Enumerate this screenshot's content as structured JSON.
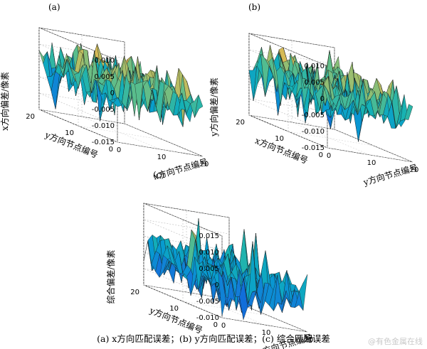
{
  "caption": "(a) x方向匹配误差；(b) y方向匹配误差；(c) 综合匹配误差",
  "watermark": "@有色金属在线",
  "chart_data": [
    {
      "type": "surface",
      "panel": "(a)",
      "zlabel": "x方向偏差/像素",
      "ylabel": "y方向节点编号",
      "xlabel": "x方向节点编号",
      "zlim": [
        -0.015,
        0.01
      ],
      "zticks": [
        "0.010",
        "0.005",
        "0",
        "-0.005",
        "-0.010",
        "-0.015"
      ],
      "xticks": [
        "0",
        "10",
        "20"
      ],
      "yticks": [
        "20",
        "10",
        "0"
      ],
      "xrange": [
        0,
        20
      ],
      "yrange": [
        0,
        20
      ],
      "grid": true,
      "seed": 11
    },
    {
      "type": "surface",
      "panel": "(b)",
      "zlabel": "y方向偏差/像素",
      "ylabel": "x方向节点编号",
      "xlabel": "y方向节点编号",
      "zlim": [
        -0.015,
        0.01
      ],
      "zticks": [
        "0.010",
        "0.005",
        "0",
        "-0.005",
        "-0.010",
        "-0.015"
      ],
      "xticks": [
        "0",
        "10",
        "20"
      ],
      "yticks": [
        "20",
        "10",
        "0"
      ],
      "xrange": [
        0,
        20
      ],
      "yrange": [
        0,
        20
      ],
      "grid": true,
      "seed": 29
    },
    {
      "type": "surface",
      "panel": "(c)",
      "zlabel": "综合偏差/像素",
      "ylabel": "y方向节点编号",
      "xlabel": "x方向节点编号",
      "zlim": [
        -0.01,
        0.015
      ],
      "zticks": [
        "0.015",
        "0.010",
        "0.005",
        "0",
        "-0.005",
        "-0.010"
      ],
      "xticks": [
        "0",
        "10",
        "20"
      ],
      "yticks": [
        "20",
        "10",
        "0"
      ],
      "xrange": [
        0,
        20
      ],
      "yrange": [
        0,
        20
      ],
      "grid": true,
      "seed": 47
    }
  ]
}
